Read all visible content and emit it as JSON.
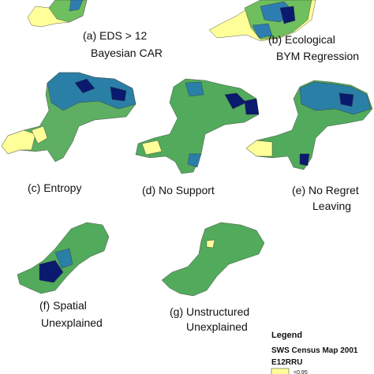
{
  "panels": [
    {
      "lines": [
        "(a) EDS > 12",
        "Bayesian CAR"
      ]
    },
    {
      "lines": [
        "(b) Ecological",
        "BYM Regression"
      ]
    },
    {
      "lines": [
        "(c) Entropy"
      ]
    },
    {
      "lines": [
        "(d) No Support"
      ]
    },
    {
      "lines": [
        "(e) No  Regret",
        "Leaving"
      ]
    },
    {
      "lines": [
        "(f) Spatial",
        "Unexplained"
      ]
    },
    {
      "lines": [
        "(g) Unstructured",
        "Unexplained"
      ]
    }
  ],
  "legend": {
    "title": "Legend",
    "map": "SWS Census Map 2001",
    "variable": "E12RRU",
    "classes": [
      "<0.95"
    ]
  }
}
